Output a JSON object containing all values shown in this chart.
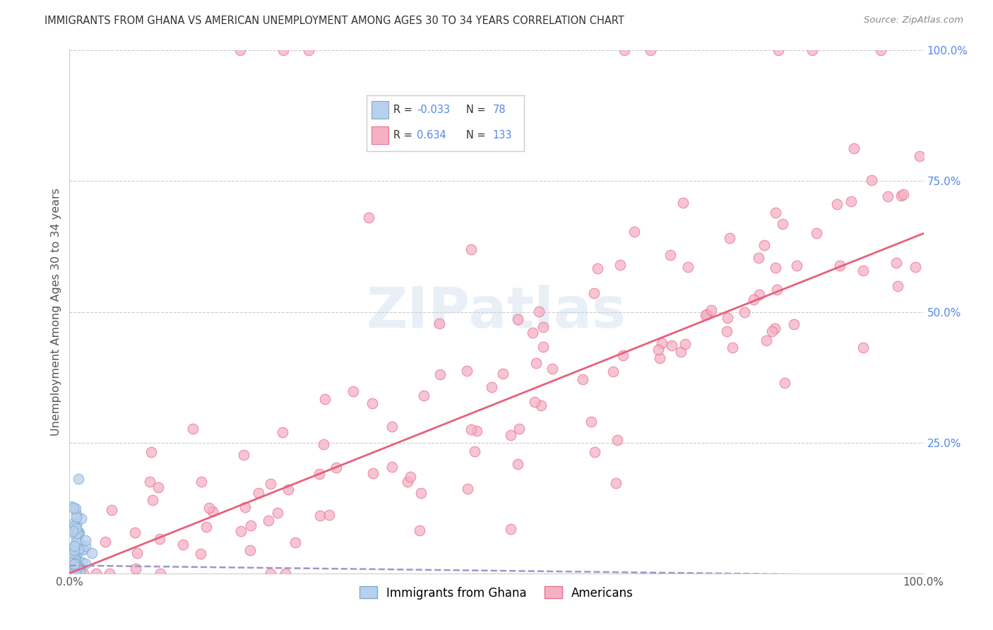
{
  "title": "IMMIGRANTS FROM GHANA VS AMERICAN UNEMPLOYMENT AMONG AGES 30 TO 34 YEARS CORRELATION CHART",
  "source": "Source: ZipAtlas.com",
  "ylabel": "Unemployment Among Ages 30 to 34 years",
  "legend_label1": "Immigrants from Ghana",
  "legend_label2": "Americans",
  "r1": "-0.033",
  "n1": "78",
  "r2": "0.634",
  "n2": "133",
  "background_color": "#ffffff",
  "watermark_text": "ZIPatlas",
  "scatter_blue_color": "#b8d0ed",
  "scatter_blue_edge": "#7aaad0",
  "scatter_pink_color": "#f5b0c5",
  "scatter_pink_edge": "#e8708a",
  "trendline_blue_color": "#9999cc",
  "trendline_pink_color": "#e8607a",
  "grid_color": "#cccccc",
  "title_color": "#333333",
  "right_axis_color": "#5588ee",
  "legend_r_color": "#333333",
  "legend_n_color": "#5588ee"
}
